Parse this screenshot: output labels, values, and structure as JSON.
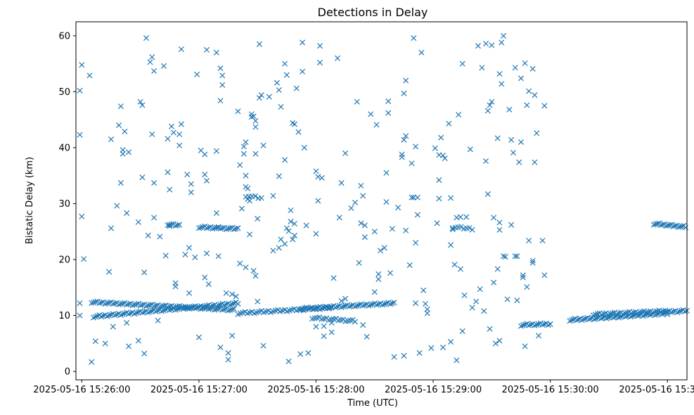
{
  "chart_data": {
    "type": "scatter",
    "title": "Detections in Delay",
    "xlabel": "Time (UTC)",
    "ylabel": "Bistatic Delay (km)",
    "marker": "x",
    "color": "#1f77b4",
    "grid": false,
    "xlim_seconds": [
      -3,
      310
    ],
    "ylim": [
      -1.5,
      62.5
    ],
    "x_ticks": [
      {
        "t": 0,
        "label": "2025-05-16 15:26:00"
      },
      {
        "t": 60,
        "label": "2025-05-16 15:27:00"
      },
      {
        "t": 120,
        "label": "2025-05-16 15:28:00"
      },
      {
        "t": 180,
        "label": "2025-05-16 15:29:00"
      },
      {
        "t": 240,
        "label": "2025-05-16 15:30:00"
      },
      {
        "t": 300,
        "label": "2025-05-16 15:31:00"
      }
    ],
    "y_ticks": [
      {
        "v": 0,
        "label": "0"
      },
      {
        "v": 10,
        "label": "10"
      },
      {
        "v": 20,
        "label": "20"
      },
      {
        "v": 30,
        "label": "30"
      },
      {
        "v": 40,
        "label": "40"
      },
      {
        "v": 50,
        "label": "50"
      },
      {
        "v": 60,
        "label": "60"
      }
    ],
    "x_unit_note": "x values are seconds after 2025-05-16 15:26:00 UTC",
    "tracks": [
      {
        "name": "track-a",
        "t_start": 5,
        "t_end": 78,
        "y_start": 12.4,
        "y_end": 11.0,
        "step": 1.0
      },
      {
        "name": "track-b",
        "t_start": 6,
        "t_end": 80,
        "y_start": 9.8,
        "y_end": 12.2,
        "step": 1.0
      },
      {
        "name": "track-c",
        "t_start": 84,
        "t_end": 92,
        "y_start": 31.4,
        "y_end": 31.0,
        "step": 1.5
      },
      {
        "name": "track-d",
        "t_start": 80,
        "t_end": 128,
        "y_start": 10.4,
        "y_end": 11.4,
        "step": 1.2
      },
      {
        "name": "track-e",
        "t_start": 112,
        "t_end": 160,
        "y_start": 11.2,
        "y_end": 12.2,
        "step": 1.0
      },
      {
        "name": "track-f",
        "t_start": 118,
        "t_end": 140,
        "y_start": 9.6,
        "y_end": 9.0,
        "step": 1.2
      },
      {
        "name": "track-g",
        "t_start": 190,
        "t_end": 200,
        "y_start": 25.8,
        "y_end": 25.5,
        "step": 1.5
      },
      {
        "name": "track-h",
        "t_start": 225,
        "t_end": 240,
        "y_start": 8.3,
        "y_end": 8.5,
        "step": 1.0
      },
      {
        "name": "track-i",
        "t_start": 250,
        "t_end": 300,
        "y_start": 9.2,
        "y_end": 10.4,
        "step": 0.9
      },
      {
        "name": "track-j",
        "t_start": 262,
        "t_end": 300,
        "y_start": 10.2,
        "y_end": 10.8,
        "step": 1.1
      },
      {
        "name": "track-k",
        "t_start": 298,
        "t_end": 322,
        "y_start": 10.6,
        "y_end": 11.1,
        "step": 1.0
      },
      {
        "name": "track-l",
        "t_start": 293,
        "t_end": 322,
        "y_start": 26.4,
        "y_end": 25.4,
        "step": 0.9
      },
      {
        "name": "track-m",
        "t_start": 60,
        "t_end": 80,
        "y_start": 25.8,
        "y_end": 25.5,
        "step": 1.0
      },
      {
        "name": "track-n",
        "t_start": 44,
        "t_end": 50,
        "y_start": 26.3,
        "y_end": 26.1,
        "step": 1.0
      }
    ],
    "points": [
      [
        -1,
        50.2
      ],
      [
        -1,
        42.3
      ],
      [
        0,
        54.8
      ],
      [
        0,
        27.7
      ],
      [
        1,
        20.1
      ],
      [
        -1,
        12.2
      ],
      [
        -1,
        10
      ],
      [
        4,
        52.9
      ],
      [
        5,
        1.7
      ],
      [
        7,
        5.4
      ],
      [
        10,
        9.8
      ],
      [
        12,
        5
      ],
      [
        14,
        17.8
      ],
      [
        15,
        25.6
      ],
      [
        15,
        41.5
      ],
      [
        16,
        8
      ],
      [
        18,
        29.6
      ],
      [
        19,
        44
      ],
      [
        20,
        47.4
      ],
      [
        20,
        33.7
      ],
      [
        21,
        39.6
      ],
      [
        21,
        38.9
      ],
      [
        22,
        42.9
      ],
      [
        23,
        28.3
      ],
      [
        23,
        8.7
      ],
      [
        24,
        39.2
      ],
      [
        24,
        4.5
      ],
      [
        29,
        26.7
      ],
      [
        30,
        48.2
      ],
      [
        29,
        5.5
      ],
      [
        31,
        47.6
      ],
      [
        31,
        34.7
      ],
      [
        32,
        3.2
      ],
      [
        32,
        17.7
      ],
      [
        33,
        59.6
      ],
      [
        34,
        24.3
      ],
      [
        35,
        55.3
      ],
      [
        36,
        56.2
      ],
      [
        36,
        42.4
      ],
      [
        37,
        53.7
      ],
      [
        37,
        33.7
      ],
      [
        37,
        27.5
      ],
      [
        39,
        9.1
      ],
      [
        40,
        24.1
      ],
      [
        42,
        54.6
      ],
      [
        43,
        20.7
      ],
      [
        44,
        35.6
      ],
      [
        44,
        41.6
      ],
      [
        45,
        32.5
      ],
      [
        45,
        26
      ],
      [
        46,
        43.8
      ],
      [
        47,
        42.7
      ],
      [
        48,
        15.8
      ],
      [
        48,
        15.2
      ],
      [
        50,
        42.4
      ],
      [
        50,
        40.4
      ],
      [
        51,
        44.2
      ],
      [
        51,
        57.6
      ],
      [
        53,
        20.9
      ],
      [
        54,
        35.2
      ],
      [
        55,
        14
      ],
      [
        55,
        22.1
      ],
      [
        56,
        33.5
      ],
      [
        56,
        32
      ],
      [
        58,
        20.4
      ],
      [
        59,
        53.1
      ],
      [
        60,
        6.1
      ],
      [
        61,
        39.5
      ],
      [
        63,
        38.8
      ],
      [
        63,
        35.2
      ],
      [
        63,
        16.8
      ],
      [
        64,
        57.5
      ],
      [
        64,
        34.1
      ],
      [
        64,
        21.1
      ],
      [
        65,
        15.6
      ],
      [
        69,
        57
      ],
      [
        69,
        39.4
      ],
      [
        69,
        28.3
      ],
      [
        70,
        25.7
      ],
      [
        70,
        20.6
      ],
      [
        71,
        48.4
      ],
      [
        71,
        4.3
      ],
      [
        71,
        54.2
      ],
      [
        72,
        52.9
      ],
      [
        72,
        51.2
      ],
      [
        74,
        14
      ],
      [
        75,
        3.3
      ],
      [
        75,
        2.1
      ],
      [
        77,
        6.4
      ],
      [
        77,
        13.8
      ],
      [
        79,
        13.4
      ],
      [
        80,
        46.5
      ],
      [
        81,
        36.9
      ],
      [
        81,
        19.3
      ],
      [
        82,
        29.1
      ],
      [
        83,
        40.2
      ],
      [
        83,
        38.9
      ],
      [
        84,
        41
      ],
      [
        84,
        35
      ],
      [
        84,
        33
      ],
      [
        85,
        32.7
      ],
      [
        85,
        30.8
      ],
      [
        84,
        18.6
      ],
      [
        86,
        30.5
      ],
      [
        86,
        24.5
      ],
      [
        87,
        46
      ],
      [
        87,
        45.5
      ],
      [
        88,
        45.6
      ],
      [
        88,
        18
      ],
      [
        89,
        44.8
      ],
      [
        89,
        43.7
      ],
      [
        89,
        17.1
      ],
      [
        89,
        38.9
      ],
      [
        90,
        27.3
      ],
      [
        90,
        12.5
      ],
      [
        91,
        58.5
      ],
      [
        91,
        48.9
      ],
      [
        92,
        49.4
      ],
      [
        93,
        40.4
      ],
      [
        93,
        4.6
      ],
      [
        96,
        49.1
      ],
      [
        98,
        31.4
      ],
      [
        98,
        21.6
      ],
      [
        100,
        51.6
      ],
      [
        101,
        50.3
      ],
      [
        101,
        34.9
      ],
      [
        101,
        22.1
      ],
      [
        102,
        47.3
      ],
      [
        102,
        23.6
      ],
      [
        104,
        55
      ],
      [
        104,
        37.8
      ],
      [
        104,
        22.8
      ],
      [
        105,
        53
      ],
      [
        105,
        25.6
      ],
      [
        106,
        1.8
      ],
      [
        106,
        25.1
      ],
      [
        107,
        28.8
      ],
      [
        107,
        26.8
      ],
      [
        108,
        44.4
      ],
      [
        108,
        23.6
      ],
      [
        109,
        44.2
      ],
      [
        109,
        24.3
      ],
      [
        109,
        26.4
      ],
      [
        110,
        50.6
      ],
      [
        111,
        42.8
      ],
      [
        112,
        3.1
      ],
      [
        113,
        58.8
      ],
      [
        113,
        53.6
      ],
      [
        114,
        40
      ],
      [
        115,
        26.1
      ],
      [
        116,
        3.3
      ],
      [
        120,
        35.8
      ],
      [
        120,
        24.6
      ],
      [
        120,
        8
      ],
      [
        121,
        30.5
      ],
      [
        121,
        34.8
      ],
      [
        122,
        58.2
      ],
      [
        122,
        55.2
      ],
      [
        123,
        34.6
      ],
      [
        124,
        6.3
      ],
      [
        124,
        8.1
      ],
      [
        128,
        8.7
      ],
      [
        128,
        7
      ],
      [
        129,
        16.7
      ],
      [
        131,
        56
      ],
      [
        132,
        27.5
      ],
      [
        133,
        33.7
      ],
      [
        133,
        12.6
      ],
      [
        135,
        13
      ],
      [
        135,
        39
      ],
      [
        138,
        29.2
      ],
      [
        140,
        30.2
      ],
      [
        141,
        48.2
      ],
      [
        142,
        19.4
      ],
      [
        143,
        33.2
      ],
      [
        143,
        26.5
      ],
      [
        144,
        31.4
      ],
      [
        145,
        26.1
      ],
      [
        144,
        8.3
      ],
      [
        145,
        24
      ],
      [
        146,
        6.2
      ],
      [
        148,
        46
      ],
      [
        150,
        25
      ],
      [
        150,
        14.2
      ],
      [
        151,
        44.1
      ],
      [
        152,
        17.4
      ],
      [
        152,
        16.5
      ],
      [
        153,
        21.6
      ],
      [
        155,
        22.1
      ],
      [
        156,
        35.5
      ],
      [
        156,
        30.3
      ],
      [
        157,
        48.3
      ],
      [
        157,
        46.2
      ],
      [
        158,
        17.6
      ],
      [
        159,
        25.5
      ],
      [
        160,
        2.6
      ],
      [
        162,
        29.3
      ],
      [
        164,
        38.8
      ],
      [
        164,
        38.3
      ],
      [
        165,
        41.4
      ],
      [
        165,
        49.7
      ],
      [
        165,
        2.8
      ],
      [
        166,
        52
      ],
      [
        166,
        42.1
      ],
      [
        166,
        25.2
      ],
      [
        168,
        19
      ],
      [
        169,
        37.2
      ],
      [
        169,
        31.1
      ],
      [
        170,
        59.6
      ],
      [
        170,
        31.1
      ],
      [
        171,
        23
      ],
      [
        171,
        12.2
      ],
      [
        171,
        40.2
      ],
      [
        172,
        28
      ],
      [
        172,
        31.1
      ],
      [
        173,
        3.3
      ],
      [
        174,
        57
      ],
      [
        175,
        14.5
      ],
      [
        176,
        12.1
      ],
      [
        177,
        11.1
      ],
      [
        177,
        10.4
      ],
      [
        179,
        4.2
      ],
      [
        181,
        39.9
      ],
      [
        182,
        26.5
      ],
      [
        183,
        38.7
      ],
      [
        183,
        34.2
      ],
      [
        183,
        30.9
      ],
      [
        184,
        41.8
      ],
      [
        185,
        4.3
      ],
      [
        185,
        38.6
      ],
      [
        186,
        38.1
      ],
      [
        188,
        44.3
      ],
      [
        189,
        31
      ],
      [
        189,
        22.6
      ],
      [
        189,
        5.3
      ],
      [
        190,
        25.4
      ],
      [
        191,
        19.1
      ],
      [
        192,
        2
      ],
      [
        192,
        27.5
      ],
      [
        193,
        45.9
      ],
      [
        194,
        18.3
      ],
      [
        194,
        27.6
      ],
      [
        195,
        55
      ],
      [
        195,
        7.2
      ],
      [
        196,
        13.6
      ],
      [
        197,
        27.6
      ],
      [
        199,
        39.7
      ],
      [
        200,
        11.4
      ],
      [
        202,
        12.5
      ],
      [
        203,
        58.2
      ],
      [
        204,
        14.7
      ],
      [
        205,
        54.3
      ],
      [
        206,
        10.8
      ],
      [
        207,
        58.6
      ],
      [
        207,
        37.6
      ],
      [
        208,
        31.7
      ],
      [
        208,
        46.6
      ],
      [
        209,
        47.6
      ],
      [
        209,
        7.6
      ],
      [
        210,
        58.3
      ],
      [
        210,
        48.2
      ],
      [
        211,
        27.5
      ],
      [
        211,
        15.9
      ],
      [
        212,
        5
      ],
      [
        213,
        41.7
      ],
      [
        213,
        18.3
      ],
      [
        214,
        53.2
      ],
      [
        214,
        26.6
      ],
      [
        214,
        25.3
      ],
      [
        214,
        5.5
      ],
      [
        215,
        58.8
      ],
      [
        215,
        51.4
      ],
      [
        216,
        60
      ],
      [
        216,
        20.6
      ],
      [
        217,
        20.5
      ],
      [
        218,
        12.9
      ],
      [
        219,
        46.8
      ],
      [
        220,
        41.4
      ],
      [
        220,
        26.2
      ],
      [
        221,
        39.1
      ],
      [
        222,
        54.3
      ],
      [
        222,
        20.6
      ],
      [
        223,
        20.6
      ],
      [
        223,
        12.7
      ],
      [
        224,
        37.4
      ],
      [
        225,
        52.4
      ],
      [
        225,
        41
      ],
      [
        226,
        17.2
      ],
      [
        226,
        16.8
      ],
      [
        227,
        55.1
      ],
      [
        227,
        4.5
      ],
      [
        228,
        47.6
      ],
      [
        228,
        15.1
      ],
      [
        229,
        23.4
      ],
      [
        229,
        50.1
      ],
      [
        231,
        54.1
      ],
      [
        231,
        19.8
      ],
      [
        231,
        19.4
      ],
      [
        232,
        37.4
      ],
      [
        232,
        49.4
      ],
      [
        233,
        42.6
      ],
      [
        234,
        6.4
      ],
      [
        236,
        23.4
      ],
      [
        237,
        47.5
      ],
      [
        237,
        17.2
      ]
    ]
  }
}
